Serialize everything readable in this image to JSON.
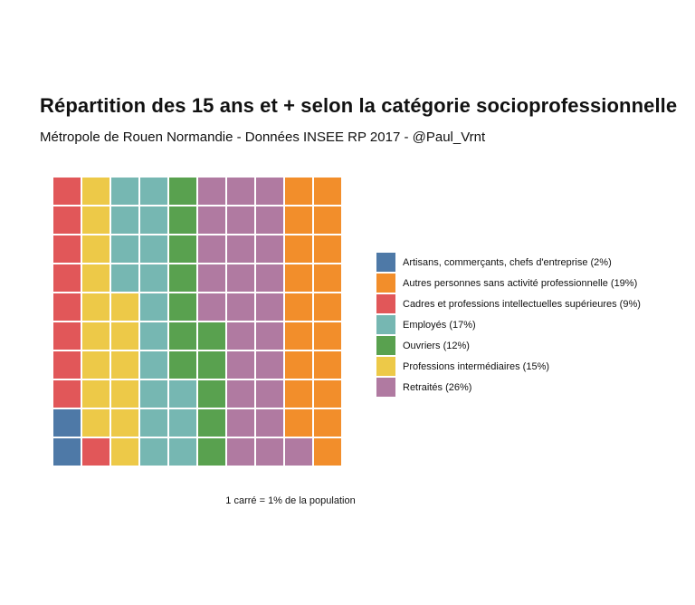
{
  "title": "Répartition des 15 ans et + selon la catégorie socioprofessionnelle",
  "subtitle": "Métropole de Rouen Normandie - Données INSEE RP 2017 - @Paul_Vrnt",
  "caption": "1 carré = 1% de la population",
  "chart_data": {
    "type": "waffle",
    "grid": {
      "cols": 10,
      "rows": 10,
      "fill_order": "column-wise, bottom to top, left to right"
    },
    "unit": "1 square = 1%",
    "legend_position": "right",
    "categories": [
      {
        "name": "Artisans, commerçants, chefs d'entreprise",
        "label": "Artisans, commerçants, chefs d'entreprise (2%)",
        "value": 2,
        "color": "#4e79a7"
      },
      {
        "name": "Cadres et professions intellectuelles supérieures",
        "label": "Cadres et professions intellectuelles supérieures (9%)",
        "value": 9,
        "color": "#e15759"
      },
      {
        "name": "Professions intermédiaires",
        "label": "Professions intermédiaires (15%)",
        "value": 15,
        "color": "#edc948"
      },
      {
        "name": "Employés",
        "label": "Employés (17%)",
        "value": 17,
        "color": "#76b7b2"
      },
      {
        "name": "Ouvriers",
        "label": "Ouvriers (12%)",
        "value": 12,
        "color": "#59a14f"
      },
      {
        "name": "Retraités",
        "label": "Retraités (26%)",
        "value": 26,
        "color": "#b07aa1"
      },
      {
        "name": "Autres personnes sans activité professionnelle",
        "label": "Autres personnes sans activité professionnelle (19%)",
        "value": 19,
        "color": "#f28e2b"
      }
    ],
    "legend_order": [
      0,
      6,
      1,
      3,
      4,
      2,
      5
    ]
  }
}
